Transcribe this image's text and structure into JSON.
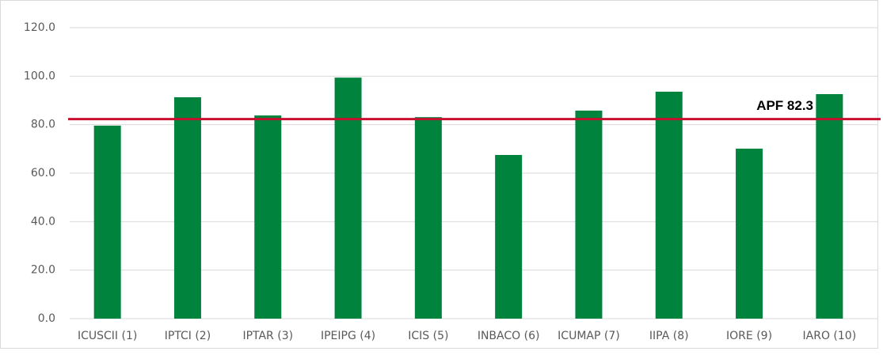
{
  "chart_data": {
    "type": "bar",
    "categories": [
      "ICUSCII  (1)",
      "IPTCI (2)",
      "IPTAR (3)",
      "IPEIPG (4)",
      "ICIS (5)",
      "INBACO (6)",
      "ICUMAP (7)",
      "IIPA (8)",
      "IORE (9)",
      "IARO (10)"
    ],
    "values": [
      79.6,
      91.3,
      83.8,
      99.4,
      83.1,
      67.5,
      85.8,
      93.6,
      70.1,
      92.6
    ],
    "color": "#00843d",
    "ylim": [
      0,
      120
    ],
    "yticks": [
      {
        "value": 0,
        "label": "0.0"
      },
      {
        "value": 20,
        "label": "20.0"
      },
      {
        "value": 40,
        "label": "40.0"
      },
      {
        "value": 60,
        "label": "60.0"
      },
      {
        "value": 80,
        "label": "80.0"
      },
      {
        "value": 100,
        "label": "100.0"
      },
      {
        "value": 120,
        "label": "120.0"
      }
    ],
    "grid": true,
    "reference_line": {
      "value": 82.3,
      "label": "APF 82.3",
      "color": "#c8102e"
    }
  }
}
